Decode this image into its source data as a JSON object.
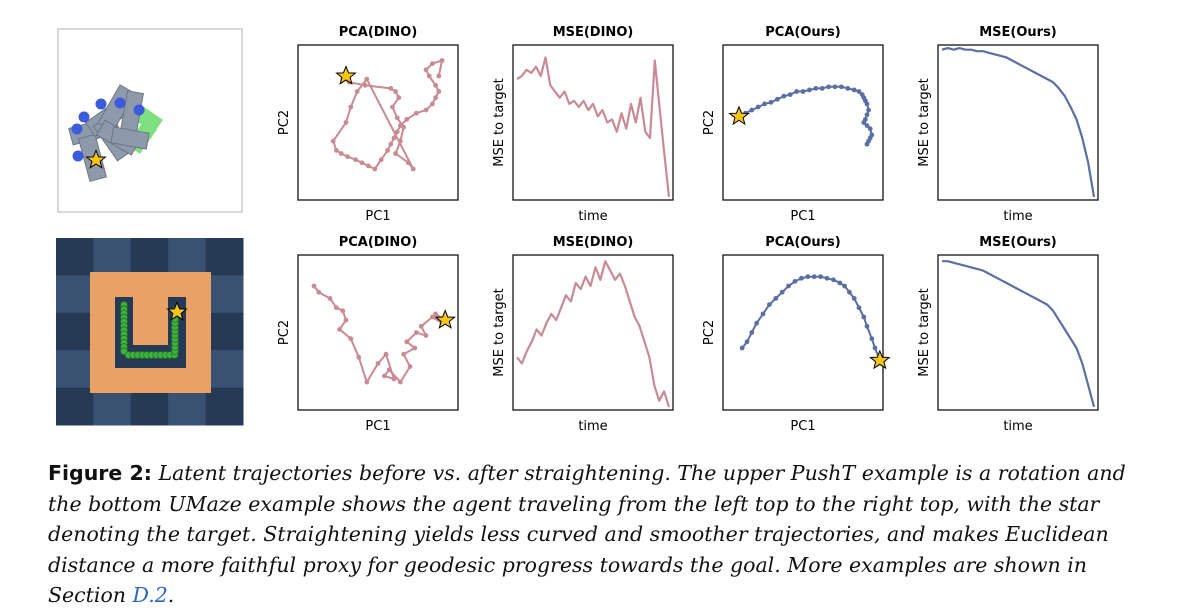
{
  "figure": {
    "rows": [
      {
        "environment": "PushT",
        "panels": [
          {
            "title": "PCA(DINO)",
            "xlabel": "PC1",
            "ylabel": "PC2"
          },
          {
            "title": "MSE(DINO)",
            "xlabel": "time",
            "ylabel": "MSE to target"
          },
          {
            "title": "PCA(Ours)",
            "xlabel": "PC1",
            "ylabel": "PC2"
          },
          {
            "title": "MSE(Ours)",
            "xlabel": "time",
            "ylabel": "MSE to target"
          }
        ]
      },
      {
        "environment": "UMaze",
        "panels": [
          {
            "title": "PCA(DINO)",
            "xlabel": "PC1",
            "ylabel": "PC2"
          },
          {
            "title": "MSE(DINO)",
            "xlabel": "time",
            "ylabel": "MSE to target"
          },
          {
            "title": "PCA(Ours)",
            "xlabel": "PC1",
            "ylabel": "PC2"
          },
          {
            "title": "MSE(Ours)",
            "xlabel": "time",
            "ylabel": "MSE to target"
          }
        ]
      }
    ],
    "colors": {
      "dino": "#c98a94",
      "ours": "#5a6fa3",
      "star_fill": "#f5c518",
      "maze_floor": "#e8a266",
      "maze_dark_tile": "#263a55",
      "maze_light_tile": "#3a5272",
      "pusht_block": "#8e9aaa",
      "pusht_target": "#7ee07e",
      "agent_dot": "#3b5bdb",
      "trail": "#3fb13f"
    }
  },
  "chart_data": [
    {
      "type": "line",
      "title": "PCA(DINO)",
      "xlabel": "PC1",
      "ylabel": "PC2",
      "x": [
        0.3,
        0.28,
        0.32,
        0.42,
        0.58,
        0.61,
        0.63,
        0.59,
        0.62,
        0.66,
        0.64,
        0.61,
        0.69,
        0.72,
        0.43,
        0.37,
        0.33,
        0.3,
        0.22,
        0.24,
        0.27,
        0.31,
        0.36,
        0.4,
        0.44,
        0.48,
        0.52,
        0.56,
        0.58,
        0.6,
        0.62,
        0.64,
        0.68,
        0.74,
        0.8,
        0.84,
        0.86,
        0.88,
        0.86,
        0.82,
        0.8,
        0.84,
        0.9,
        0.88
      ],
      "y": [
        0.8,
        0.78,
        0.76,
        0.74,
        0.72,
        0.7,
        0.66,
        0.6,
        0.53,
        0.47,
        0.38,
        0.3,
        0.24,
        0.2,
        0.78,
        0.7,
        0.6,
        0.5,
        0.38,
        0.32,
        0.3,
        0.28,
        0.26,
        0.24,
        0.22,
        0.2,
        0.26,
        0.32,
        0.36,
        0.4,
        0.44,
        0.48,
        0.52,
        0.56,
        0.58,
        0.62,
        0.66,
        0.7,
        0.74,
        0.8,
        0.84,
        0.88,
        0.9,
        0.8
      ]
    },
    {
      "type": "line",
      "title": "MSE(DINO)",
      "xlabel": "time",
      "ylabel": "MSE to target",
      "y": [
        0.78,
        0.8,
        0.84,
        0.82,
        0.86,
        0.8,
        0.92,
        0.74,
        0.7,
        0.66,
        0.7,
        0.62,
        0.64,
        0.6,
        0.64,
        0.58,
        0.62,
        0.54,
        0.58,
        0.5,
        0.52,
        0.44,
        0.56,
        0.46,
        0.62,
        0.5,
        0.66,
        0.44,
        0.4,
        0.9,
        0.6,
        0.3,
        0.02
      ]
    },
    {
      "type": "line",
      "title": "PCA(Ours)",
      "xlabel": "PC1",
      "ylabel": "PC2",
      "x": [
        0.1,
        0.14,
        0.18,
        0.22,
        0.26,
        0.3,
        0.34,
        0.38,
        0.42,
        0.46,
        0.5,
        0.54,
        0.58,
        0.62,
        0.66,
        0.7,
        0.74,
        0.78,
        0.82,
        0.85,
        0.87,
        0.88,
        0.89,
        0.9,
        0.91,
        0.9,
        0.89,
        0.88,
        0.9,
        0.92,
        0.93,
        0.92,
        0.91,
        0.9
      ],
      "y": [
        0.54,
        0.56,
        0.58,
        0.6,
        0.62,
        0.63,
        0.65,
        0.67,
        0.68,
        0.7,
        0.7,
        0.71,
        0.72,
        0.72,
        0.73,
        0.73,
        0.73,
        0.72,
        0.71,
        0.7,
        0.68,
        0.66,
        0.64,
        0.62,
        0.58,
        0.55,
        0.52,
        0.5,
        0.48,
        0.46,
        0.42,
        0.4,
        0.38,
        0.36
      ]
    },
    {
      "type": "line",
      "title": "MSE(Ours)",
      "xlabel": "time",
      "ylabel": "MSE to target",
      "y": [
        0.97,
        0.98,
        0.97,
        0.98,
        0.97,
        0.97,
        0.96,
        0.96,
        0.95,
        0.94,
        0.93,
        0.92,
        0.9,
        0.88,
        0.86,
        0.84,
        0.82,
        0.8,
        0.78,
        0.76,
        0.72,
        0.67,
        0.6,
        0.52,
        0.4,
        0.24,
        0.02
      ]
    },
    {
      "type": "line",
      "title": "PCA(DINO)",
      "xlabel": "PC1",
      "ylabel": "PC2",
      "x": [
        0.1,
        0.13,
        0.2,
        0.24,
        0.28,
        0.3,
        0.26,
        0.33,
        0.38,
        0.43,
        0.5,
        0.55,
        0.6,
        0.54,
        0.57,
        0.64,
        0.7,
        0.66,
        0.73,
        0.68,
        0.74,
        0.8,
        0.77,
        0.84,
        0.9,
        0.86,
        0.92
      ],
      "y": [
        0.8,
        0.76,
        0.72,
        0.66,
        0.64,
        0.58,
        0.52,
        0.46,
        0.34,
        0.18,
        0.3,
        0.36,
        0.2,
        0.22,
        0.26,
        0.18,
        0.28,
        0.36,
        0.4,
        0.44,
        0.5,
        0.48,
        0.54,
        0.6,
        0.56,
        0.62,
        0.58
      ]
    },
    {
      "type": "line",
      "title": "MSE(DINO)",
      "xlabel": "time",
      "ylabel": "MSE to target",
      "y": [
        0.34,
        0.3,
        0.38,
        0.44,
        0.52,
        0.48,
        0.56,
        0.62,
        0.58,
        0.66,
        0.74,
        0.7,
        0.82,
        0.78,
        0.86,
        0.8,
        0.92,
        0.84,
        0.96,
        0.9,
        0.84,
        0.88,
        0.8,
        0.7,
        0.6,
        0.54,
        0.44,
        0.34,
        0.16,
        0.06,
        0.12,
        0.02
      ]
    },
    {
      "type": "line",
      "title": "PCA(Ours)",
      "xlabel": "PC1",
      "ylabel": "PC2",
      "x": [
        0.12,
        0.15,
        0.18,
        0.21,
        0.25,
        0.29,
        0.33,
        0.37,
        0.41,
        0.45,
        0.49,
        0.53,
        0.57,
        0.61,
        0.65,
        0.69,
        0.73,
        0.76,
        0.79,
        0.82,
        0.85,
        0.88,
        0.9,
        0.93,
        0.95,
        0.98
      ],
      "y": [
        0.4,
        0.44,
        0.5,
        0.56,
        0.62,
        0.68,
        0.72,
        0.76,
        0.8,
        0.83,
        0.85,
        0.86,
        0.86,
        0.86,
        0.85,
        0.84,
        0.82,
        0.8,
        0.76,
        0.72,
        0.66,
        0.6,
        0.54,
        0.46,
        0.4,
        0.32
      ]
    },
    {
      "type": "line",
      "title": "MSE(Ours)",
      "xlabel": "time",
      "ylabel": "MSE to target",
      "y": [
        0.96,
        0.96,
        0.95,
        0.94,
        0.93,
        0.92,
        0.91,
        0.9,
        0.88,
        0.86,
        0.84,
        0.82,
        0.8,
        0.78,
        0.76,
        0.74,
        0.72,
        0.7,
        0.68,
        0.64,
        0.58,
        0.52,
        0.46,
        0.4,
        0.3,
        0.16,
        0.02
      ]
    }
  ],
  "caption": {
    "lead": "Figure 2:",
    "body": "Latent trajectories before vs. after straightening. The upper PushT example is a rotation and the bottom UMaze example shows the agent traveling from the left top to the right top, with the star denoting the target. Straightening yields less curved and smoother trajectories, and makes Euclidean distance a more faithful proxy for geodesic progress towards the goal. More examples are shown in Section ",
    "ref": "D.2",
    "end": "."
  }
}
